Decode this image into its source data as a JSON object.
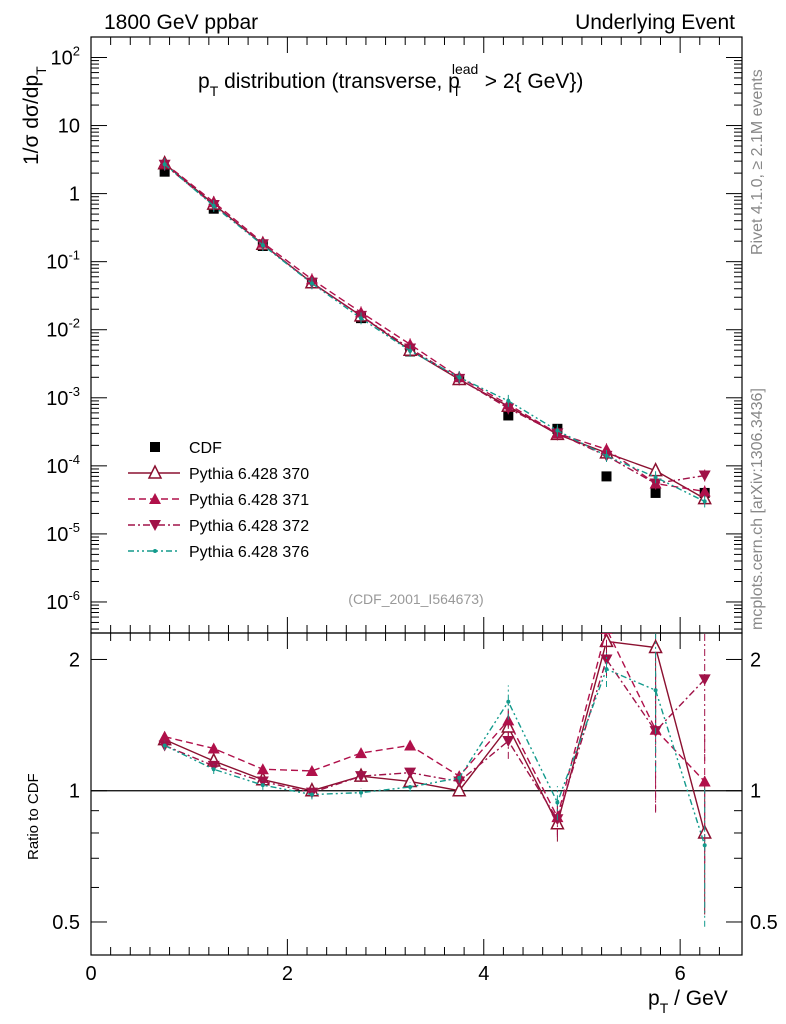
{
  "header": {
    "left": "1800 GeV ppbar",
    "right": "Underlying Event"
  },
  "side_labels": {
    "rivet": "Rivet 4.1.0, ≥ 2.1M events",
    "mcplots": "mcplots.cern.ch [arXiv:1306.3436]"
  },
  "chart_data": [
    {
      "type": "scatter",
      "title": "p_T distribution (transverse, p_T^lead > 2{ GeV})",
      "analysis_id": "(CDF_2001_I564673)",
      "ylabel": "1/σ dσ/dp_T",
      "yscale": "log",
      "ylim": [
        3.5e-07,
        200
      ],
      "xlim": [
        0,
        6.63
      ],
      "yticks": [
        "10^-6",
        "10^-5",
        "10^-4",
        "10^-3",
        "10^-2",
        "10^-1",
        "1",
        "10",
        "10^2"
      ],
      "x": [
        0.75,
        1.25,
        1.75,
        2.25,
        2.75,
        3.25,
        3.75,
        4.25,
        4.75,
        5.25,
        5.75,
        6.25
      ],
      "series": [
        {
          "name": "CDF",
          "color": "#000000",
          "style": "data",
          "values": [
            2.1,
            0.6,
            0.17,
            0.049,
            0.0148,
            0.0048,
            0.00185,
            0.00055,
            0.00035,
            7e-05,
            4e-05,
            4e-05
          ]
        },
        {
          "name": "Pythia 6.428 370",
          "color": "#8b1030",
          "style": "solid",
          "marker": "open-triangle-up",
          "values": [
            2.75,
            0.7,
            0.18,
            0.049,
            0.016,
            0.005,
            0.00186,
            0.00075,
            0.00029,
            0.000155,
            8.5e-05,
            3.3e-05
          ]
        },
        {
          "name": "Pythia 6.428 371",
          "color": "#b0104a",
          "style": "dashed",
          "marker": "filled-triangle-up",
          "values": [
            2.8,
            0.75,
            0.19,
            0.055,
            0.018,
            0.0061,
            0.002,
            0.0008,
            0.0003,
            0.000175,
            5.5e-05,
            4.2e-05
          ]
        },
        {
          "name": "Pythia 6.428 372",
          "color": "#a01248",
          "style": "dashdot",
          "marker": "filled-triangle-down",
          "values": [
            2.65,
            0.68,
            0.18,
            0.049,
            0.016,
            0.0053,
            0.0019,
            0.0007,
            0.0003,
            0.00014,
            5.5e-05,
            7.2e-05
          ]
        },
        {
          "name": "Pythia 6.428 376",
          "color": "#139a8c",
          "style": "dashdotdot",
          "marker": "dot",
          "values": [
            2.7,
            0.66,
            0.175,
            0.048,
            0.0147,
            0.0049,
            0.002,
            0.0009,
            0.00033,
            0.00014,
            6.8e-05,
            3e-05
          ]
        }
      ]
    },
    {
      "type": "line",
      "ylabel": "Ratio to CDF",
      "xlabel": "p_T / GeV",
      "ylim": [
        0.42,
        2.3
      ],
      "xlim": [
        0,
        6.63
      ],
      "xticks": [
        "0",
        "2",
        "4",
        "6"
      ],
      "yticks": [
        "0.5",
        "1",
        "2"
      ],
      "x": [
        0.75,
        1.25,
        1.75,
        2.25,
        2.75,
        3.25,
        3.75,
        4.25,
        4.75,
        5.25,
        5.75,
        6.25
      ],
      "series": [
        {
          "name": "Pythia 6.428 370",
          "values": [
            1.31,
            1.17,
            1.06,
            1.0,
            1.08,
            1.05,
            1.0,
            1.4,
            0.84,
            2.2,
            2.13,
            0.8
          ]
        },
        {
          "name": "Pythia 6.428 371",
          "values": [
            1.33,
            1.25,
            1.12,
            1.11,
            1.22,
            1.27,
            1.08,
            1.45,
            0.87,
            2.35,
            1.38,
            1.05
          ]
        },
        {
          "name": "Pythia 6.428 372",
          "values": [
            1.27,
            1.14,
            1.05,
            0.99,
            1.08,
            1.1,
            1.05,
            1.3,
            0.86,
            2.0,
            1.37,
            1.8
          ]
        },
        {
          "name": "Pythia 6.428 376",
          "values": [
            1.27,
            1.12,
            1.03,
            0.98,
            0.99,
            1.02,
            1.07,
            1.6,
            0.94,
            1.9,
            1.7,
            0.75
          ]
        }
      ]
    }
  ]
}
